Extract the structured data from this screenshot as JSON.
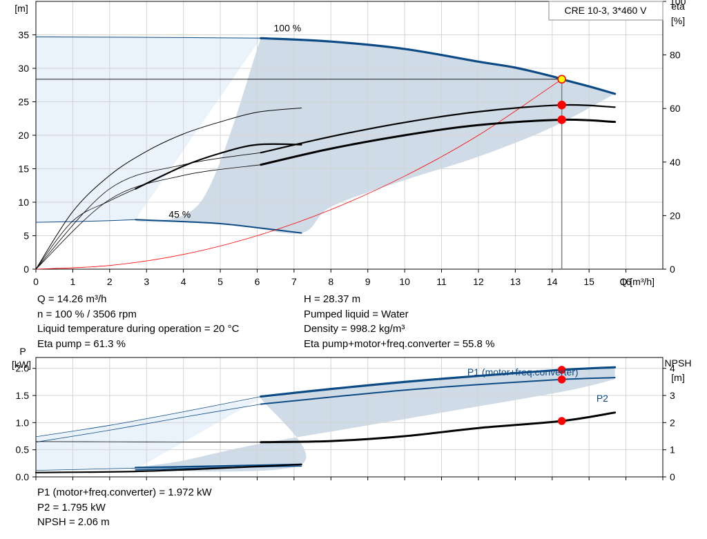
{
  "chart_data": [
    {
      "type": "line",
      "title": "CRE 10-3, 3*460 V",
      "xlabel": "Q [m³/h]",
      "ylabel_left": [
        "H",
        "[m]"
      ],
      "ylabel_right": [
        "eta",
        "[%]"
      ],
      "xlim": [
        0,
        17
      ],
      "ylim_left": [
        0,
        40
      ],
      "ylim_right": [
        0,
        100
      ],
      "x_ticks": [
        "0",
        "1",
        "2",
        "3",
        "4",
        "5",
        "6",
        "7",
        "8",
        "9",
        "10",
        "11",
        "12",
        "13",
        "14",
        "15",
        "16"
      ],
      "y_ticks_left": [
        "0",
        "5",
        "10",
        "15",
        "20",
        "25",
        "30",
        "35"
      ],
      "y_ticks_right": [
        "0",
        "20",
        "40",
        "60",
        "80",
        "100"
      ],
      "grid": true,
      "annotations": [
        "100 %",
        "45 %"
      ],
      "operating_point": {
        "x": 14.26,
        "h": 28.37,
        "eta_pump": 61.3,
        "eta_total": 55.8
      },
      "envelope_h": {
        "upper": [
          [
            6.1,
            34.5
          ],
          [
            9,
            33.5
          ],
          [
            11,
            32.1
          ],
          [
            13,
            30.1
          ],
          [
            14.26,
            28.37
          ],
          [
            15.7,
            26.2
          ]
        ],
        "lower": [
          [
            15.7,
            26.2
          ],
          [
            14,
            21.2
          ],
          [
            12,
            16.8
          ],
          [
            10,
            13.3
          ],
          [
            8,
            9.3
          ],
          [
            7.2,
            5.4
          ],
          [
            5.5,
            6.5
          ],
          [
            4,
            7.0
          ],
          [
            2.7,
            7.4
          ],
          [
            4.5,
            10.3
          ],
          [
            6.1,
            34.5
          ]
        ]
      },
      "extrapolated_h_region": [
        [
          0,
          34.7
        ],
        [
          6.1,
          34.5
        ],
        [
          2.7,
          7.4
        ],
        [
          0,
          7.0
        ]
      ],
      "series": [
        {
          "role": "h_max",
          "axis": "left",
          "color": "#0b4a84",
          "width": 3.2,
          "x": [
            6.1,
            8,
            10,
            12,
            13,
            14,
            14.26,
            15,
            15.7
          ],
          "y": [
            34.5,
            34.0,
            32.9,
            31.0,
            30.1,
            28.8,
            28.37,
            27.3,
            26.2
          ]
        },
        {
          "role": "h_max_ext",
          "axis": "left",
          "color": "#0b4a84",
          "width": 1,
          "x": [
            0,
            2,
            4,
            6.1
          ],
          "y": [
            34.7,
            34.65,
            34.6,
            34.5
          ]
        },
        {
          "role": "h_min",
          "axis": "left",
          "color": "#0b4a84",
          "width": 2,
          "x": [
            2.7,
            4,
            5,
            6,
            7.2
          ],
          "y": [
            7.4,
            7.1,
            6.8,
            6.2,
            5.4
          ]
        },
        {
          "role": "h_min_ext",
          "axis": "left",
          "color": "#0b4a84",
          "width": 1,
          "x": [
            0,
            1,
            2,
            2.7
          ],
          "y": [
            7.0,
            7.1,
            7.25,
            7.4
          ]
        },
        {
          "role": "system_curve",
          "axis": "left",
          "color": "#ff0000",
          "width": 0.8,
          "x": [
            0,
            2,
            4,
            6,
            8,
            10,
            12,
            14.26
          ],
          "y": [
            0,
            0.55,
            2.2,
            5.0,
            8.9,
            13.9,
            20.0,
            28.37
          ]
        },
        {
          "role": "eta_pump_max",
          "axis": "right",
          "color": "#000000",
          "width": 2.2,
          "x": [
            6.1,
            8,
            10,
            12,
            14.26,
            15.7
          ],
          "y": [
            43.5,
            49.5,
            54.8,
            58.8,
            61.3,
            60.5
          ]
        },
        {
          "role": "eta_total_max",
          "axis": "right",
          "color": "#000000",
          "width": 3,
          "x": [
            6.1,
            8,
            10,
            12,
            14.26,
            15.7
          ],
          "y": [
            39,
            45,
            50,
            53.8,
            55.8,
            55
          ]
        },
        {
          "role": "eta_pump_min",
          "axis": "right",
          "color": "#000000",
          "width": 1,
          "x": [
            0,
            1,
            2,
            3,
            4,
            5,
            6,
            7.2
          ],
          "y": [
            0,
            21.5,
            35,
            44,
            50.5,
            55,
            58.6,
            60.2
          ]
        },
        {
          "role": "eta_total_min",
          "axis": "right",
          "color": "#000000",
          "width": 2.2,
          "x": [
            2.7,
            4,
            5,
            6,
            7.2
          ],
          "y": [
            30,
            38.5,
            43.3,
            46.5,
            46.5
          ]
        },
        {
          "role": "eta_pump_ext",
          "axis": "right",
          "color": "#000000",
          "width": 0.8,
          "x": [
            0,
            2,
            4,
            6.1
          ],
          "y": [
            0,
            30,
            39,
            43.5
          ]
        },
        {
          "role": "eta_total_ext",
          "axis": "right",
          "color": "#000000",
          "width": 0.8,
          "x": [
            0,
            2,
            4,
            6.1
          ],
          "y": [
            0,
            26,
            35,
            39
          ]
        },
        {
          "role": "eta_total_min_ext",
          "axis": "right",
          "color": "#000000",
          "width": 0.8,
          "x": [
            0,
            1,
            2,
            2.7
          ],
          "y": [
            0,
            18,
            25.5,
            30
          ]
        }
      ],
      "markers": [
        {
          "axis": "left",
          "x": 14.26,
          "y": 28.37,
          "fill": "#ffff00",
          "stroke": "#ff0000"
        },
        {
          "axis": "right",
          "x": 14.26,
          "y": 61.3,
          "fill": "#ff0000",
          "stroke": "#ff0000"
        },
        {
          "axis": "right",
          "x": 14.26,
          "y": 55.8,
          "fill": "#ff0000",
          "stroke": "#ff0000"
        }
      ]
    },
    {
      "type": "line",
      "ylabel_left": [
        "P",
        "[kW]"
      ],
      "ylabel_right": [
        "NPSH",
        "[m]"
      ],
      "xlim": [
        0,
        17
      ],
      "ylim_left": [
        0,
        2.2
      ],
      "ylim_right": [
        0,
        4.4
      ],
      "y_ticks_left": [
        "0.0",
        "0.5",
        "1.0",
        "1.5",
        "2.0"
      ],
      "y_ticks_right": [
        "0",
        "1",
        "2",
        "3",
        "4"
      ],
      "grid": true,
      "legend": [
        "P1 (motor+freq.converter)",
        "P2"
      ],
      "operating_point": {
        "x": 14.26,
        "p1": 1.972,
        "p2": 1.795,
        "npsh": 2.06
      },
      "envelope": [
        [
          6.1,
          1.45
        ],
        [
          10,
          1.75
        ],
        [
          14,
          1.93
        ],
        [
          15.7,
          2.0
        ],
        [
          15.7,
          1.8
        ],
        [
          14.5,
          1.6
        ],
        [
          12,
          1.3
        ],
        [
          9,
          0.95
        ],
        [
          6,
          0.6
        ],
        [
          4,
          0.3
        ],
        [
          2.7,
          0.14
        ],
        [
          7.2,
          0.23
        ],
        [
          6.1,
          1.45
        ]
      ],
      "extrapolated_region": [
        [
          0,
          0.73
        ],
        [
          6.1,
          1.45
        ],
        [
          2.7,
          0.14
        ],
        [
          0,
          0.12
        ]
      ],
      "series": [
        {
          "role": "p1_max",
          "axis": "left",
          "color": "#0b4a84",
          "width": 3.2,
          "x": [
            6.1,
            8,
            10,
            12,
            14.26,
            15.7
          ],
          "y": [
            1.48,
            1.62,
            1.75,
            1.86,
            1.972,
            2.02
          ]
        },
        {
          "role": "p2_max",
          "axis": "left",
          "color": "#0b4a84",
          "width": 2,
          "x": [
            6.1,
            8,
            10,
            12,
            14.26,
            15.7
          ],
          "y": [
            1.34,
            1.47,
            1.6,
            1.7,
            1.795,
            1.83
          ]
        },
        {
          "role": "p1_ext",
          "axis": "left",
          "color": "#0b4a84",
          "width": 0.8,
          "x": [
            0,
            2,
            4,
            6.1
          ],
          "y": [
            0.74,
            0.95,
            1.2,
            1.48
          ]
        },
        {
          "role": "p2_ext",
          "axis": "left",
          "color": "#0b4a84",
          "width": 0.8,
          "x": [
            0,
            2,
            4,
            6.1
          ],
          "y": [
            0.64,
            0.86,
            1.1,
            1.34
          ]
        },
        {
          "role": "p1_min",
          "axis": "left",
          "color": "#0b4a84",
          "width": 2.4,
          "x": [
            2.7,
            5,
            7.2
          ],
          "y": [
            0.17,
            0.2,
            0.23
          ]
        },
        {
          "role": "p2_min",
          "axis": "left",
          "color": "#0b4a84",
          "width": 1.6,
          "x": [
            2.7,
            5,
            7.2
          ],
          "y": [
            0.13,
            0.17,
            0.2
          ]
        },
        {
          "role": "p_min_ext",
          "axis": "left",
          "color": "#0b4a84",
          "width": 0.8,
          "x": [
            0,
            2.7
          ],
          "y": [
            0.12,
            0.16
          ]
        },
        {
          "role": "npsh",
          "axis": "right",
          "color": "#000000",
          "width": 3,
          "x": [
            6.1,
            8,
            10,
            12,
            14.26,
            15.7
          ],
          "y": [
            1.28,
            1.32,
            1.5,
            1.8,
            2.06,
            2.37
          ]
        },
        {
          "role": "npsh_ext",
          "axis": "right",
          "color": "#000000",
          "width": 0.8,
          "x": [
            0,
            3,
            6.1
          ],
          "y": [
            1.3,
            1.29,
            1.28
          ]
        },
        {
          "role": "npsh_min",
          "axis": "right",
          "color": "#000000",
          "width": 2.2,
          "x": [
            0,
            2.7,
            5,
            7.2
          ],
          "y": [
            0.16,
            0.2,
            0.32,
            0.46
          ]
        }
      ],
      "markers": [
        {
          "axis": "left",
          "x": 14.26,
          "y": 1.972,
          "fill": "#ff0000",
          "stroke": "#ff0000"
        },
        {
          "axis": "left",
          "x": 14.26,
          "y": 1.795,
          "fill": "#ff0000",
          "stroke": "#ff0000"
        },
        {
          "axis": "right",
          "x": 14.26,
          "y": 2.06,
          "fill": "#ff0000",
          "stroke": "#ff0000"
        }
      ]
    }
  ],
  "info_top_left": [
    "Q = 14.26 m³/h",
    "n = 100 % / 3506 rpm",
    "Liquid temperature during operation = 20 °C",
    "Eta pump = 61.3 %"
  ],
  "info_top_right": [
    "H = 28.37 m",
    "Pumped liquid = Water",
    "Density = 998.2 kg/m³",
    "Eta pump+motor+freq.converter = 55.8 %"
  ],
  "info_bottom": [
    "P1 (motor+freq.converter) = 1.972 kW",
    "P2 = 1.795 kW",
    "NPSH = 2.06 m"
  ],
  "colors": {
    "envelope": "#cfdbe6",
    "extrapolated": "#eaf2fb",
    "curve_blue": "#0b4a84",
    "grid": "#d4d4d4",
    "marker": "#ff0000"
  }
}
